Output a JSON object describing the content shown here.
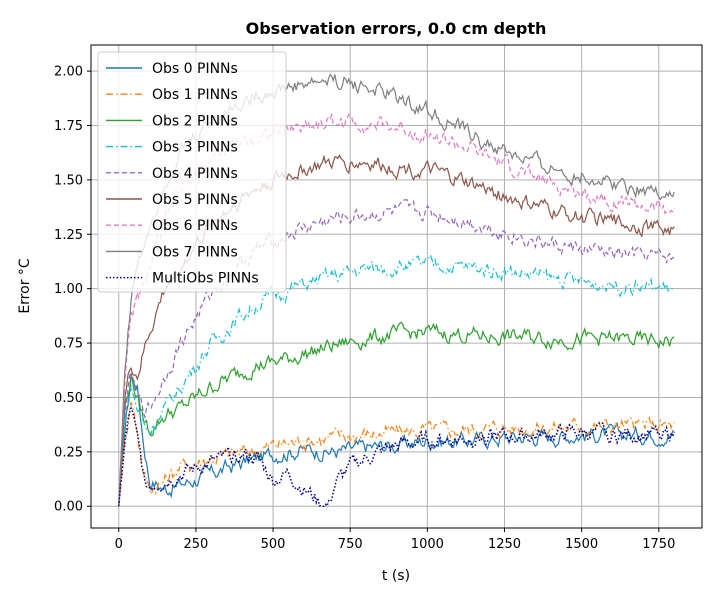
{
  "chart_data": {
    "type": "line",
    "title": "Observation errors, 0.0 cm depth",
    "xlabel": "t (s)",
    "ylabel": "Error °C",
    "xlim": [
      -90,
      1890
    ],
    "ylim": [
      -0.1,
      2.12
    ],
    "xticks": [
      0,
      250,
      500,
      750,
      1000,
      1250,
      1500,
      1750
    ],
    "yticks": [
      0.0,
      0.25,
      0.5,
      0.75,
      1.0,
      1.25,
      1.5,
      1.75,
      2.0
    ],
    "xtick_labels": [
      "0",
      "250",
      "500",
      "750",
      "1000",
      "1250",
      "1500",
      "1750"
    ],
    "ytick_labels": [
      "0.00",
      "0.25",
      "0.50",
      "0.75",
      "1.00",
      "1.25",
      "1.50",
      "1.75",
      "2.00"
    ],
    "grid": true,
    "legend_position": "upper-left",
    "series": [
      {
        "name": "Obs 0 PINNs",
        "color": "#1f77b4",
        "dash": "solid",
        "x": [
          0,
          20,
          40,
          60,
          80,
          100,
          150,
          200,
          300,
          400,
          450,
          500,
          600,
          700,
          800,
          900,
          1000,
          1100,
          1200,
          1300,
          1400,
          1500,
          1600,
          1700,
          1800
        ],
        "y": [
          0.0,
          0.35,
          0.6,
          0.55,
          0.3,
          0.12,
          0.08,
          0.1,
          0.15,
          0.2,
          0.22,
          0.24,
          0.26,
          0.25,
          0.27,
          0.28,
          0.3,
          0.3,
          0.31,
          0.32,
          0.32,
          0.33,
          0.33,
          0.33,
          0.33
        ]
      },
      {
        "name": "Obs 1 PINNs",
        "color": "#ff7f0e",
        "dash": "dashdot",
        "x": [
          0,
          20,
          40,
          60,
          80,
          100,
          150,
          200,
          300,
          400,
          450,
          500,
          600,
          700,
          800,
          900,
          1000,
          1100,
          1200,
          1300,
          1400,
          1500,
          1600,
          1700,
          1800
        ],
        "y": [
          0.0,
          0.3,
          0.5,
          0.35,
          0.15,
          0.08,
          0.12,
          0.18,
          0.22,
          0.25,
          0.26,
          0.28,
          0.3,
          0.32,
          0.33,
          0.34,
          0.35,
          0.35,
          0.36,
          0.36,
          0.36,
          0.37,
          0.37,
          0.37,
          0.37
        ]
      },
      {
        "name": "Obs 2 PINNs",
        "color": "#2ca02c",
        "dash": "solid",
        "x": [
          0,
          20,
          40,
          60,
          80,
          100,
          150,
          200,
          300,
          400,
          450,
          500,
          600,
          700,
          800,
          900,
          1000,
          1100,
          1200,
          1300,
          1400,
          1500,
          1600,
          1700,
          1800
        ],
        "y": [
          0.0,
          0.45,
          0.6,
          0.5,
          0.4,
          0.35,
          0.42,
          0.45,
          0.55,
          0.62,
          0.65,
          0.66,
          0.7,
          0.74,
          0.77,
          0.79,
          0.8,
          0.79,
          0.78,
          0.78,
          0.77,
          0.77,
          0.77,
          0.76,
          0.76
        ]
      },
      {
        "name": "Obs 3 PINNs",
        "color": "#17becf",
        "dash": "dashdot",
        "x": [
          0,
          20,
          40,
          60,
          80,
          100,
          150,
          200,
          300,
          400,
          450,
          500,
          600,
          700,
          800,
          900,
          1000,
          1100,
          1200,
          1300,
          1400,
          1500,
          1600,
          1700,
          1800
        ],
        "y": [
          0.0,
          0.4,
          0.55,
          0.45,
          0.38,
          0.35,
          0.45,
          0.55,
          0.75,
          0.88,
          0.93,
          0.97,
          1.02,
          1.06,
          1.09,
          1.1,
          1.11,
          1.1,
          1.09,
          1.07,
          1.05,
          1.03,
          1.02,
          1.01,
          1.0
        ]
      },
      {
        "name": "Obs 4 PINNs",
        "color": "#9467bd",
        "dash": "dashed",
        "x": [
          0,
          20,
          40,
          60,
          80,
          100,
          150,
          200,
          300,
          400,
          450,
          500,
          600,
          700,
          800,
          900,
          1000,
          1100,
          1200,
          1300,
          1400,
          1500,
          1600,
          1700,
          1800
        ],
        "y": [
          0.0,
          0.45,
          0.6,
          0.5,
          0.45,
          0.45,
          0.6,
          0.75,
          0.98,
          1.12,
          1.18,
          1.22,
          1.28,
          1.32,
          1.34,
          1.35,
          1.35,
          1.32,
          1.28,
          1.24,
          1.2,
          1.18,
          1.16,
          1.15,
          1.14
        ]
      },
      {
        "name": "Obs 5 PINNs",
        "color": "#8c564b",
        "dash": "solid",
        "x": [
          0,
          20,
          40,
          60,
          80,
          100,
          150,
          200,
          300,
          400,
          450,
          500,
          600,
          700,
          800,
          900,
          1000,
          1100,
          1200,
          1300,
          1400,
          1500,
          1600,
          1700,
          1800
        ],
        "y": [
          0.0,
          0.5,
          0.65,
          0.6,
          0.7,
          0.8,
          1.0,
          1.1,
          1.3,
          1.42,
          1.46,
          1.5,
          1.55,
          1.58,
          1.58,
          1.56,
          1.54,
          1.5,
          1.45,
          1.4,
          1.36,
          1.33,
          1.31,
          1.29,
          1.27
        ]
      },
      {
        "name": "Obs 6 PINNs",
        "color": "#e377c2",
        "dash": "dashed",
        "x": [
          0,
          20,
          40,
          60,
          80,
          100,
          150,
          200,
          300,
          400,
          450,
          500,
          600,
          700,
          800,
          900,
          1000,
          1100,
          1200,
          1300,
          1400,
          1500,
          1600,
          1700,
          1800
        ],
        "y": [
          0.0,
          0.6,
          0.85,
          0.95,
          1.0,
          1.1,
          1.3,
          1.45,
          1.6,
          1.68,
          1.7,
          1.72,
          1.75,
          1.77,
          1.76,
          1.74,
          1.71,
          1.66,
          1.6,
          1.54,
          1.48,
          1.44,
          1.41,
          1.38,
          1.36
        ]
      },
      {
        "name": "Obs 7 PINNs",
        "color": "#7f7f7f",
        "dash": "solid",
        "x": [
          0,
          20,
          40,
          60,
          80,
          100,
          150,
          200,
          300,
          400,
          450,
          500,
          600,
          700,
          800,
          900,
          1000,
          1100,
          1200,
          1300,
          1400,
          1500,
          1600,
          1700,
          1800
        ],
        "y": [
          0.0,
          0.65,
          0.95,
          1.1,
          1.2,
          1.3,
          1.5,
          1.62,
          1.78,
          1.86,
          1.89,
          1.91,
          1.94,
          1.96,
          1.93,
          1.88,
          1.82,
          1.74,
          1.66,
          1.6,
          1.55,
          1.52,
          1.49,
          1.46,
          1.44
        ]
      },
      {
        "name": "MultiObs PINNs",
        "color": "#00008b",
        "dash": "dotted",
        "x": [
          0,
          20,
          40,
          60,
          80,
          100,
          150,
          200,
          300,
          400,
          450,
          500,
          550,
          600,
          650,
          680,
          700,
          750,
          800,
          900,
          1000,
          1100,
          1200,
          1300,
          1400,
          1500,
          1600,
          1700,
          1800
        ],
        "y": [
          0.0,
          0.3,
          0.45,
          0.3,
          0.15,
          0.1,
          0.12,
          0.15,
          0.2,
          0.24,
          0.22,
          0.12,
          0.15,
          0.08,
          0.02,
          0.0,
          0.1,
          0.18,
          0.22,
          0.28,
          0.3,
          0.31,
          0.32,
          0.32,
          0.33,
          0.34,
          0.33,
          0.33,
          0.33
        ]
      }
    ]
  }
}
